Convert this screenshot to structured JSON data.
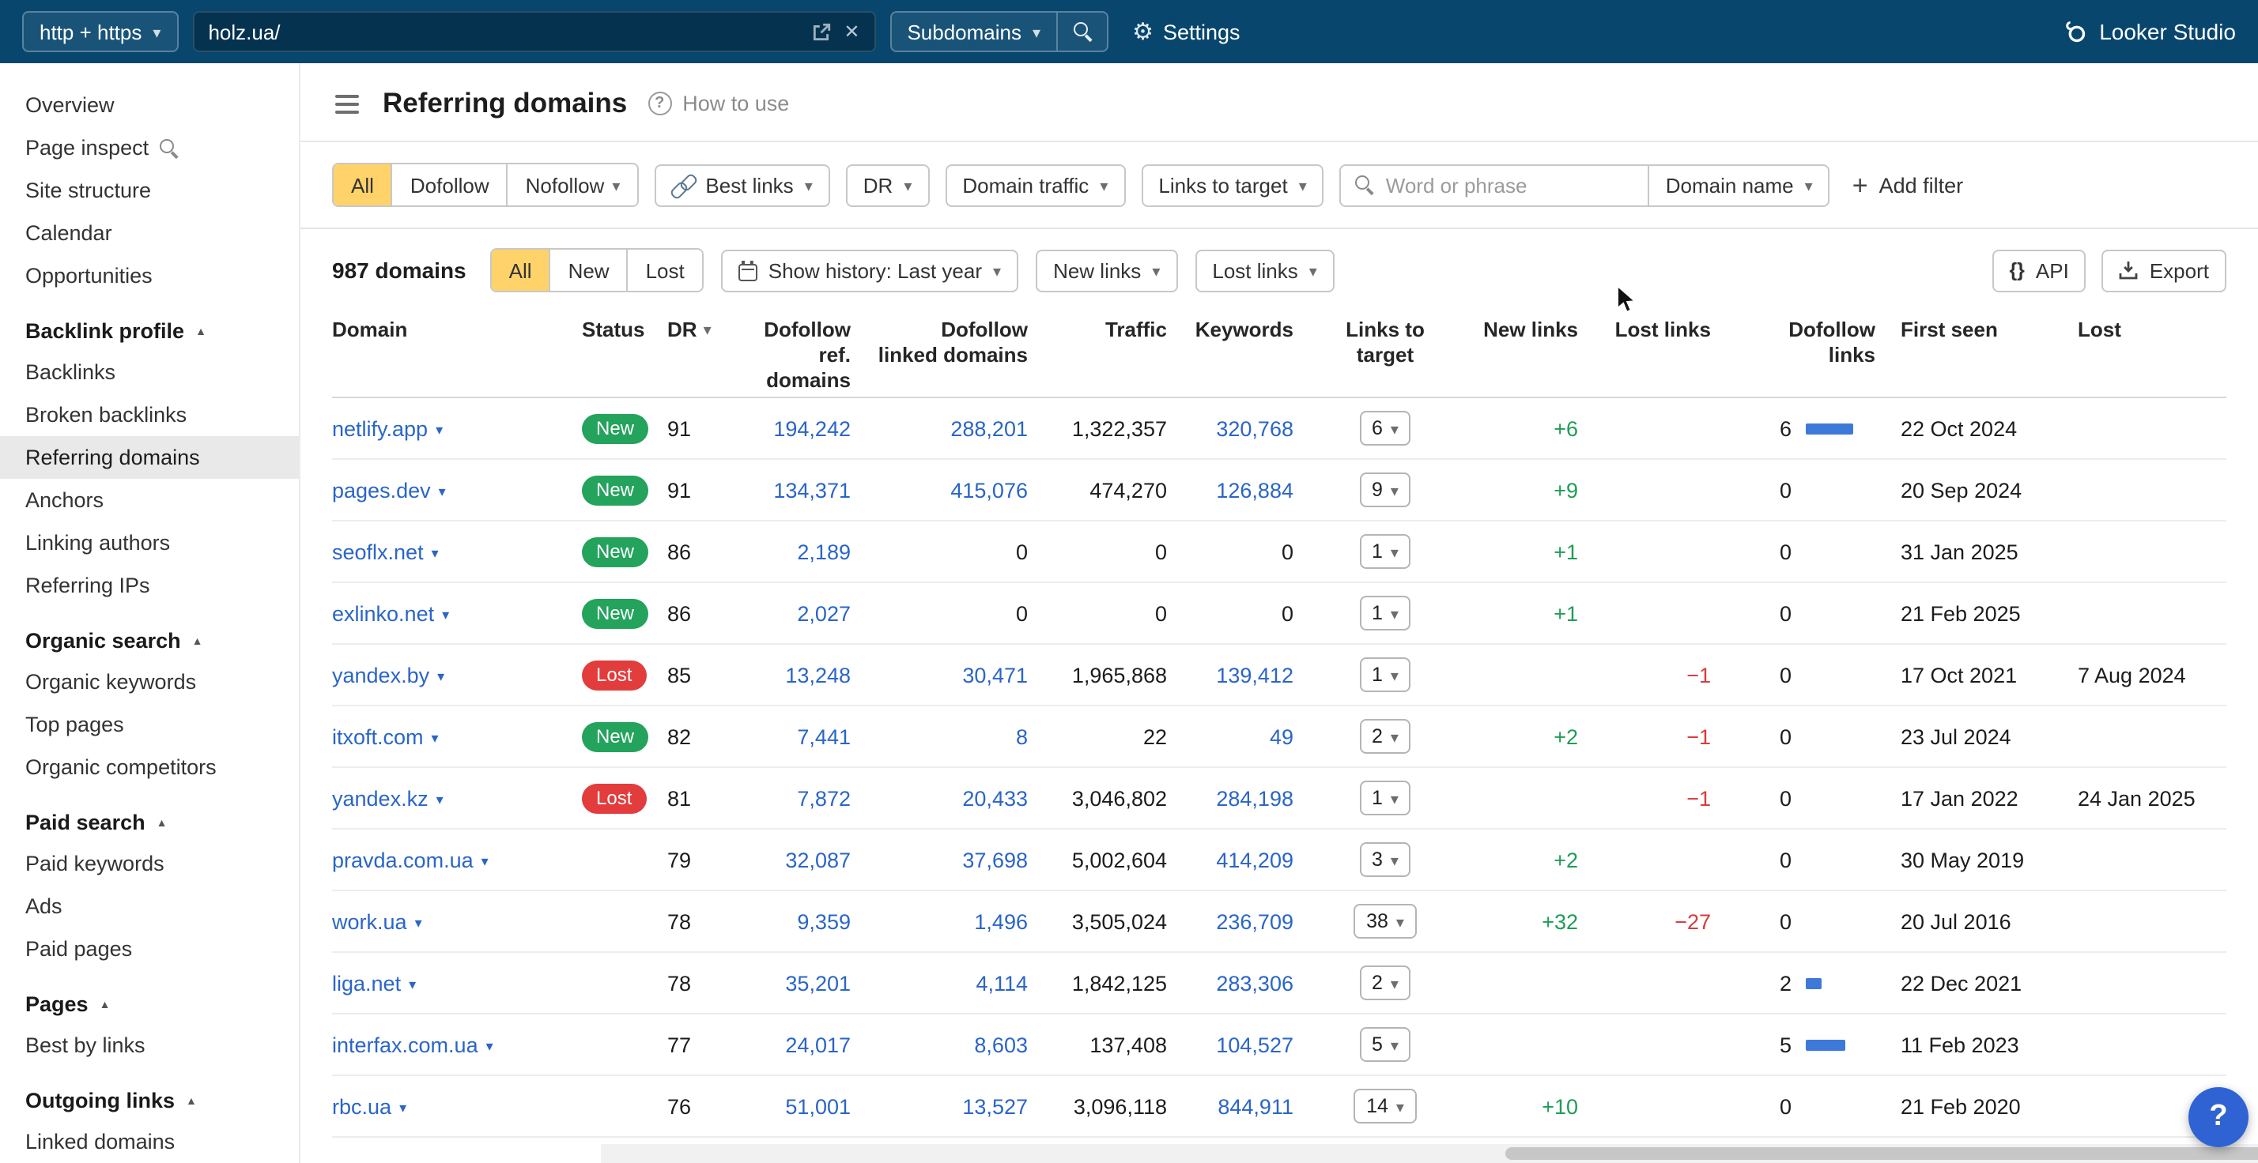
{
  "colors": {
    "topbar_bg": "#08466e",
    "selected_chip": "#ffd36a",
    "link": "#2a65c8",
    "badge_new": "#23a35c",
    "badge_lost": "#e23c3c",
    "delta_pos": "#1f9d57",
    "delta_neg": "#d83a3a",
    "bar": "#3d79d9",
    "help_fab": "#2f63d3"
  },
  "topbar": {
    "protocol": "http + https",
    "url": "holz.ua/",
    "scope": "Subdomains",
    "settings": "Settings",
    "brand": "Looker Studio"
  },
  "sidebar": {
    "sections": [
      {
        "header": null,
        "items": [
          {
            "label": "Overview"
          },
          {
            "label": "Page inspect",
            "icon": "search"
          },
          {
            "label": "Site structure"
          },
          {
            "label": "Calendar"
          },
          {
            "label": "Opportunities"
          }
        ]
      },
      {
        "header": "Backlink profile",
        "items": [
          {
            "label": "Backlinks"
          },
          {
            "label": "Broken backlinks"
          },
          {
            "label": "Referring domains",
            "selected": true
          },
          {
            "label": "Anchors"
          },
          {
            "label": "Linking authors"
          },
          {
            "label": "Referring IPs"
          }
        ]
      },
      {
        "header": "Organic search",
        "items": [
          {
            "label": "Organic keywords"
          },
          {
            "label": "Top pages"
          },
          {
            "label": "Organic competitors"
          }
        ]
      },
      {
        "header": "Paid search",
        "items": [
          {
            "label": "Paid keywords"
          },
          {
            "label": "Ads"
          },
          {
            "label": "Paid pages"
          }
        ]
      },
      {
        "header": "Pages",
        "items": [
          {
            "label": "Best by links"
          }
        ]
      },
      {
        "header": "Outgoing links",
        "items": [
          {
            "label": "Linked domains"
          }
        ]
      }
    ]
  },
  "page": {
    "title": "Referring domains",
    "howto": "How to use"
  },
  "filters": {
    "segments": [
      {
        "label": "All",
        "active": true
      },
      {
        "label": "Dofollow",
        "active": false
      },
      {
        "label": "Nofollow",
        "active": false,
        "caret": true
      }
    ],
    "dropdowns": [
      {
        "label": "Best links",
        "icon": "link"
      },
      {
        "label": "DR"
      },
      {
        "label": "Domain traffic"
      },
      {
        "label": "Links to target"
      }
    ],
    "search_placeholder": "Word or phrase",
    "search_scope": "Domain name",
    "add_filter": "Add filter"
  },
  "toolbar": {
    "count": "987 domains",
    "segments": [
      {
        "label": "All",
        "active": true
      },
      {
        "label": "New",
        "active": false
      },
      {
        "label": "Lost",
        "active": false
      }
    ],
    "history": "Show history: Last year",
    "new_links": "New links",
    "lost_links": "Lost links",
    "api": "API",
    "export": "Export"
  },
  "table": {
    "columns": [
      {
        "key": "domain",
        "label": "Domain",
        "align": "left"
      },
      {
        "key": "status",
        "label": "Status",
        "align": "left"
      },
      {
        "key": "dr",
        "label": "DR",
        "align": "left",
        "sort": true
      },
      {
        "key": "dofollow_ref_domains",
        "label": "Dofollow ref. domains",
        "align": "right"
      },
      {
        "key": "dofollow_linked_domains",
        "label": "Dofollow linked domains",
        "align": "right"
      },
      {
        "key": "traffic",
        "label": "Traffic",
        "align": "right"
      },
      {
        "key": "keywords",
        "label": "Keywords",
        "align": "right"
      },
      {
        "key": "links_to_target",
        "label": "Links to target",
        "align": "center"
      },
      {
        "key": "new_links",
        "label": "New links",
        "align": "right"
      },
      {
        "key": "lost_links",
        "label": "Lost links",
        "align": "right"
      },
      {
        "key": "dofollow_links",
        "label": "Dofollow links",
        "align": "right",
        "narrow": true
      },
      {
        "key": "first_seen",
        "label": "First seen",
        "align": "left"
      },
      {
        "key": "lost",
        "label": "Lost",
        "align": "left"
      }
    ],
    "rows": [
      {
        "domain": "netlify.app",
        "status": "New",
        "dr": 91,
        "dofollow_ref_domains": "194,242",
        "dofollow_linked_domains": "288,201",
        "traffic": "1,322,357",
        "keywords": "320,768",
        "links_to_target": 6,
        "new_links": "+6",
        "lost_links": "",
        "dofollow_links": 6,
        "first_seen": "22 Oct 2024",
        "lost": ""
      },
      {
        "domain": "pages.dev",
        "status": "New",
        "dr": 91,
        "dofollow_ref_domains": "134,371",
        "dofollow_linked_domains": "415,076",
        "traffic": "474,270",
        "keywords": "126,884",
        "links_to_target": 9,
        "new_links": "+9",
        "lost_links": "",
        "dofollow_links": 0,
        "first_seen": "20 Sep 2024",
        "lost": ""
      },
      {
        "domain": "seoflx.net",
        "status": "New",
        "dr": 86,
        "dofollow_ref_domains": "2,189",
        "dofollow_linked_domains": "0",
        "traffic": "0",
        "keywords": "0",
        "links_to_target": 1,
        "new_links": "+1",
        "lost_links": "",
        "dofollow_links": 0,
        "first_seen": "31 Jan 2025",
        "lost": ""
      },
      {
        "domain": "exlinko.net",
        "status": "New",
        "dr": 86,
        "dofollow_ref_domains": "2,027",
        "dofollow_linked_domains": "0",
        "traffic": "0",
        "keywords": "0",
        "links_to_target": 1,
        "new_links": "+1",
        "lost_links": "",
        "dofollow_links": 0,
        "first_seen": "21 Feb 2025",
        "lost": ""
      },
      {
        "domain": "yandex.by",
        "status": "Lost",
        "dr": 85,
        "dofollow_ref_domains": "13,248",
        "dofollow_linked_domains": "30,471",
        "traffic": "1,965,868",
        "keywords": "139,412",
        "links_to_target": 1,
        "new_links": "",
        "lost_links": "−1",
        "dofollow_links": 0,
        "first_seen": "17 Oct 2021",
        "lost": "7 Aug 2024"
      },
      {
        "domain": "itxoft.com",
        "status": "New",
        "dr": 82,
        "dofollow_ref_domains": "7,441",
        "dofollow_linked_domains": "8",
        "traffic": "22",
        "keywords": "49",
        "links_to_target": 2,
        "new_links": "+2",
        "lost_links": "−1",
        "dofollow_links": 0,
        "first_seen": "23 Jul 2024",
        "lost": ""
      },
      {
        "domain": "yandex.kz",
        "status": "Lost",
        "dr": 81,
        "dofollow_ref_domains": "7,872",
        "dofollow_linked_domains": "20,433",
        "traffic": "3,046,802",
        "keywords": "284,198",
        "links_to_target": 1,
        "new_links": "",
        "lost_links": "−1",
        "dofollow_links": 0,
        "first_seen": "17 Jan 2022",
        "lost": "24 Jan 2025"
      },
      {
        "domain": "pravda.com.ua",
        "status": "",
        "dr": 79,
        "dofollow_ref_domains": "32,087",
        "dofollow_linked_domains": "37,698",
        "traffic": "5,002,604",
        "keywords": "414,209",
        "links_to_target": 3,
        "new_links": "+2",
        "lost_links": "",
        "dofollow_links": 0,
        "first_seen": "30 May 2019",
        "lost": ""
      },
      {
        "domain": "work.ua",
        "status": "",
        "dr": 78,
        "dofollow_ref_domains": "9,359",
        "dofollow_linked_domains": "1,496",
        "traffic": "3,505,024",
        "keywords": "236,709",
        "links_to_target": 38,
        "new_links": "+32",
        "lost_links": "−27",
        "dofollow_links": 0,
        "first_seen": "20 Jul 2016",
        "lost": ""
      },
      {
        "domain": "liga.net",
        "status": "",
        "dr": 78,
        "dofollow_ref_domains": "35,201",
        "dofollow_linked_domains": "4,114",
        "traffic": "1,842,125",
        "keywords": "283,306",
        "links_to_target": 2,
        "new_links": "",
        "lost_links": "",
        "dofollow_links": 2,
        "first_seen": "22 Dec 2021",
        "lost": ""
      },
      {
        "domain": "interfax.com.ua",
        "status": "",
        "dr": 77,
        "dofollow_ref_domains": "24,017",
        "dofollow_linked_domains": "8,603",
        "traffic": "137,408",
        "keywords": "104,527",
        "links_to_target": 5,
        "new_links": "",
        "lost_links": "",
        "dofollow_links": 5,
        "first_seen": "11 Feb 2023",
        "lost": ""
      },
      {
        "domain": "rbc.ua",
        "status": "",
        "dr": 76,
        "dofollow_ref_domains": "51,001",
        "dofollow_linked_domains": "13,527",
        "traffic": "3,096,118",
        "keywords": "844,911",
        "links_to_target": 14,
        "new_links": "+10",
        "lost_links": "",
        "dofollow_links": 0,
        "first_seen": "21 Feb 2020",
        "lost": ""
      }
    ]
  }
}
